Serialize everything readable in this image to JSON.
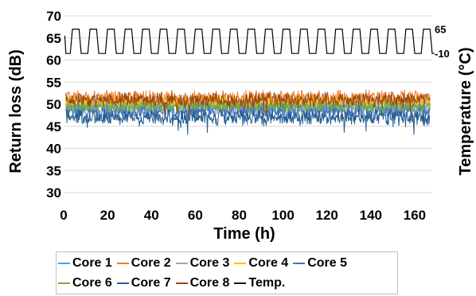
{
  "chart_data": {
    "type": "line",
    "xlabel": "Time (h)",
    "ylabel": "Return loss (dB)",
    "y2label": "Temperature (°C)",
    "xlim": [
      0,
      168
    ],
    "ylim": [
      30,
      70
    ],
    "xticks": [
      0,
      20,
      40,
      60,
      80,
      100,
      120,
      140,
      160
    ],
    "yticks": [
      30,
      35,
      40,
      45,
      50,
      55,
      60,
      65,
      70
    ],
    "y2ticks": [
      {
        "label": "65",
        "value": 65
      },
      {
        "label": "-10",
        "value": -10
      }
    ],
    "temperature_cycle": {
      "low": -10,
      "high": 65,
      "period_h": 8,
      "count": 21
    },
    "grid": "horizontal",
    "legend_position": "bottom",
    "series": [
      {
        "name": "Core 1",
        "color": "#5b9bd5",
        "axis": "left",
        "mean": 49.5,
        "spread": 1.5
      },
      {
        "name": "Core 2",
        "color": "#ed7d31",
        "axis": "left",
        "mean": 51.5,
        "spread": 1.2
      },
      {
        "name": "Core 3",
        "color": "#a5a5a5",
        "axis": "left",
        "mean": 50.0,
        "spread": 1.2
      },
      {
        "name": "Core 4",
        "color": "#ffc000",
        "axis": "left",
        "mean": 50.5,
        "spread": 1.0
      },
      {
        "name": "Core 5",
        "color": "#4472c4",
        "axis": "left",
        "mean": 48.5,
        "spread": 1.3
      },
      {
        "name": "Core 6",
        "color": "#70ad47",
        "axis": "left",
        "mean": 49.5,
        "spread": 1.0
      },
      {
        "name": "Core 7",
        "color": "#255e91",
        "axis": "left",
        "mean": 47.0,
        "spread": 1.3
      },
      {
        "name": "Core 8",
        "color": "#9e480e",
        "axis": "left",
        "mean": 51.0,
        "spread": 1.2
      },
      {
        "name": "Temp.",
        "color": "#000000",
        "axis": "right"
      }
    ]
  }
}
